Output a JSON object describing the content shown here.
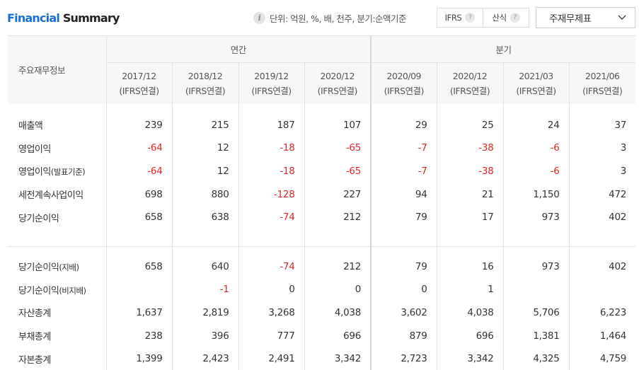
{
  "header": {
    "title_part1": "Financial",
    "title_part2": " Summary",
    "info_icon": "i",
    "unit_text": "단위: 억원, %, 배, 천주, 분기:순액기준",
    "toggle": [
      {
        "label": "IFRS",
        "help": "?"
      },
      {
        "label": "산식",
        "help": "?"
      }
    ],
    "select_label": "주재무제표"
  },
  "table": {
    "row_header": "주요재무정보",
    "groups": [
      "연간",
      "분기"
    ],
    "columns": [
      {
        "period": "2017/12",
        "type": "(IFRS연결)"
      },
      {
        "period": "2018/12",
        "type": "(IFRS연결)"
      },
      {
        "period": "2019/12",
        "type": "(IFRS연결)"
      },
      {
        "period": "2020/12",
        "type": "(IFRS연결)"
      },
      {
        "period": "2020/09",
        "type": "(IFRS연결)"
      },
      {
        "period": "2020/12",
        "type": "(IFRS연결)"
      },
      {
        "period": "2021/03",
        "type": "(IFRS연결)"
      },
      {
        "period": "2021/06",
        "type": "(IFRS연결)"
      }
    ],
    "rows": [
      {
        "label": "매출액",
        "sub": "",
        "values": [
          "239",
          "215",
          "187",
          "107",
          "29",
          "25",
          "24",
          "37"
        ]
      },
      {
        "label": "영업이익",
        "sub": "",
        "values": [
          "-64",
          "12",
          "-18",
          "-65",
          "-7",
          "-38",
          "-6",
          "3"
        ]
      },
      {
        "label": "영업이익",
        "sub": "(발표기준)",
        "values": [
          "-64",
          "12",
          "-18",
          "-65",
          "-7",
          "-38",
          "-6",
          "3"
        ]
      },
      {
        "label": "세전계속사업이익",
        "sub": "",
        "values": [
          "698",
          "880",
          "-128",
          "227",
          "94",
          "21",
          "1,150",
          "472"
        ]
      },
      {
        "label": "당기순이익",
        "sub": "",
        "values": [
          "658",
          "638",
          "-74",
          "212",
          "79",
          "17",
          "973",
          "402"
        ]
      },
      {
        "label": "당기순이익",
        "sub": "(지배)",
        "values": [
          "658",
          "640",
          "-74",
          "212",
          "79",
          "16",
          "973",
          "402"
        ]
      },
      {
        "label": "당기순이익",
        "sub": "(비지배)",
        "values": [
          "",
          "-1",
          "0",
          "0",
          "0",
          "1",
          "",
          ""
        ]
      },
      {
        "label": "자산총계",
        "sub": "",
        "values": [
          "1,637",
          "2,819",
          "3,268",
          "4,038",
          "3,602",
          "4,038",
          "5,706",
          "6,223"
        ]
      },
      {
        "label": "부채총계",
        "sub": "",
        "values": [
          "238",
          "396",
          "777",
          "696",
          "879",
          "696",
          "1,381",
          "1,464"
        ]
      },
      {
        "label": "자본총계",
        "sub": "",
        "values": [
          "1,399",
          "2,423",
          "2,491",
          "3,342",
          "2,723",
          "3,342",
          "4,325",
          "4,759"
        ]
      }
    ]
  },
  "colors": {
    "accent": "#1a6fd6",
    "negative": "#e0272a"
  }
}
